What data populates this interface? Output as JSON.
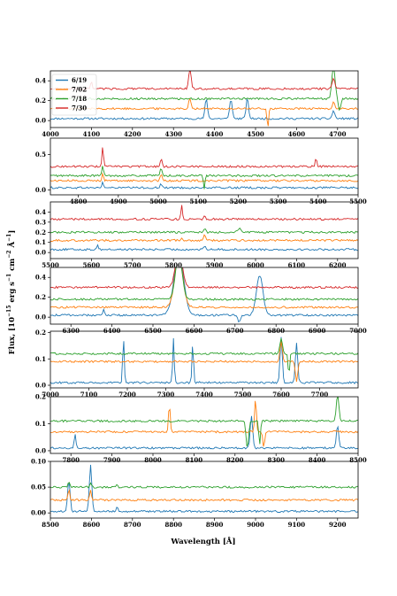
{
  "colors": {
    "6/19": "#1f77b4",
    "7/02": "#ff7f0e",
    "7/18": "#2ca02c",
    "7/30": "#d62728"
  },
  "chart_data": {
    "type": "line",
    "xlabel": "Wavelength [Å]",
    "ylabel": {
      "prefix": "Flux, [10",
      "exp1": "−15",
      "mid1": " erg s",
      "exp2": "−1",
      "mid2": " cm",
      "exp3": "−2",
      "mid3": " Å",
      "exp4": "−1",
      "suffix": "]"
    },
    "legend": {
      "placement": "upper-left",
      "labels": [
        "6/19",
        "7/02",
        "7/18",
        "7/30"
      ]
    },
    "panels": [
      {
        "xlim": [
          4000,
          4750
        ],
        "ylim": [
          -0.07,
          0.5
        ],
        "xticks": [
          "4000",
          "4100",
          "4200",
          "4300",
          "4400",
          "4500",
          "4600",
          "4700"
        ],
        "yticks": [
          "0.0",
          "0.2",
          "0.4"
        ],
        "baselines": [
          0.02,
          0.12,
          0.22,
          0.32
        ],
        "features": [
          {
            "s": 0,
            "x": 4380,
            "w": 3,
            "h": 0.2
          },
          {
            "s": 0,
            "x": 4440,
            "w": 3,
            "h": 0.2
          },
          {
            "s": 0,
            "x": 4480,
            "w": 3,
            "h": 0.2
          },
          {
            "s": 0,
            "x": 4690,
            "w": 3,
            "h": 0.08
          },
          {
            "s": 1,
            "x": 4340,
            "w": 3,
            "h": 0.1
          },
          {
            "s": 1,
            "x": 4530,
            "w": 2,
            "h": -0.18
          },
          {
            "s": 1,
            "x": 4690,
            "w": 3,
            "h": 0.06
          },
          {
            "s": 2,
            "x": 4690,
            "w": 4,
            "h": 0.32
          },
          {
            "s": 2,
            "x": 4705,
            "w": 3,
            "h": -0.12
          },
          {
            "s": 3,
            "x": 4340,
            "w": 3,
            "h": 0.2
          },
          {
            "s": 3,
            "x": 4100,
            "w": 2,
            "h": 0.08
          },
          {
            "s": 3,
            "x": 4690,
            "w": 3,
            "h": 0.1
          }
        ]
      },
      {
        "xlim": [
          4730,
          5500
        ],
        "ylim": [
          -0.07,
          0.73
        ],
        "xticks": [
          "4800",
          "4900",
          "5000",
          "5100",
          "5200",
          "5300",
          "5400",
          "5500"
        ],
        "yticks": [
          "0.0",
          "0.5"
        ],
        "baselines": [
          0.03,
          0.13,
          0.2,
          0.33
        ],
        "features": [
          {
            "s": 0,
            "x": 4861,
            "w": 2,
            "h": 0.08
          },
          {
            "s": 0,
            "x": 5007,
            "w": 2,
            "h": 0.06
          },
          {
            "s": 1,
            "x": 4861,
            "w": 2,
            "h": 0.12
          },
          {
            "s": 1,
            "x": 5007,
            "w": 2,
            "h": 0.1
          },
          {
            "s": 2,
            "x": 4861,
            "w": 2,
            "h": 0.15
          },
          {
            "s": 2,
            "x": 5007,
            "w": 2,
            "h": 0.12
          },
          {
            "s": 2,
            "x": 5115,
            "w": 2,
            "h": -0.18
          },
          {
            "s": 3,
            "x": 4861,
            "w": 2,
            "h": 0.28
          },
          {
            "s": 3,
            "x": 5007,
            "w": 2,
            "h": 0.12
          },
          {
            "s": 3,
            "x": 5395,
            "w": 2,
            "h": 0.12
          }
        ]
      },
      {
        "xlim": [
          5500,
          6250
        ],
        "ylim": [
          -0.06,
          0.5
        ],
        "xticks": [
          "5500",
          "5600",
          "5700",
          "5800",
          "5900",
          "6000",
          "6100",
          "6200"
        ],
        "yticks": [
          "0.0",
          "0.1",
          "0.2",
          "0.3",
          "0.4"
        ],
        "baselines": [
          0.03,
          0.12,
          0.2,
          0.33
        ],
        "features": [
          {
            "s": 0,
            "x": 5615,
            "w": 2,
            "h": 0.05
          },
          {
            "s": 0,
            "x": 5876,
            "w": 2,
            "h": 0.04
          },
          {
            "s": 1,
            "x": 5876,
            "w": 2,
            "h": 0.07
          },
          {
            "s": 1,
            "x": 5820,
            "w": 2,
            "h": 0.03
          },
          {
            "s": 2,
            "x": 5876,
            "w": 2,
            "h": 0.04
          },
          {
            "s": 2,
            "x": 5960,
            "w": 4,
            "h": 0.04
          },
          {
            "s": 3,
            "x": 5820,
            "w": 2,
            "h": 0.13
          },
          {
            "s": 3,
            "x": 5876,
            "w": 2,
            "h": 0.04
          }
        ]
      },
      {
        "xlim": [
          6250,
          7000
        ],
        "ylim": [
          -0.07,
          0.5
        ],
        "xticks": [
          "6300",
          "6400",
          "6500",
          "6600",
          "6700",
          "6800",
          "6900",
          "7000"
        ],
        "yticks": [
          "0.0",
          "0.2",
          "0.4"
        ],
        "baselines": [
          0.02,
          0.1,
          0.18,
          0.3
        ],
        "features": [
          {
            "s": 0,
            "x": 6563,
            "w": 12,
            "h": 0.6
          },
          {
            "s": 0,
            "x": 6760,
            "w": 8,
            "h": 0.4
          },
          {
            "s": 0,
            "x": 6380,
            "w": 2,
            "h": 0.06
          },
          {
            "s": 0,
            "x": 6710,
            "w": 3,
            "h": -0.07
          },
          {
            "s": 1,
            "x": 6563,
            "w": 10,
            "h": 0.5
          },
          {
            "s": 2,
            "x": 6563,
            "w": 8,
            "h": 0.45
          },
          {
            "s": 3,
            "x": 6563,
            "w": 8,
            "h": 0.4
          }
        ]
      },
      {
        "xlim": [
          7000,
          7800
        ],
        "ylim": [
          -0.01,
          0.205
        ],
        "xticks": [
          "7000",
          "7100",
          "7200",
          "7300",
          "7400",
          "7500",
          "7600",
          "7700"
        ],
        "yticks": [
          "0.0",
          "0.1",
          "0.2"
        ],
        "baselines": [
          0.01,
          0.09,
          0.12
        ],
        "features": [
          {
            "s": 0,
            "x": 7190,
            "w": 2,
            "h": 0.17
          },
          {
            "s": 0,
            "x": 7320,
            "w": 2,
            "h": 0.17
          },
          {
            "s": 0,
            "x": 7370,
            "w": 2,
            "h": 0.15
          },
          {
            "s": 0,
            "x": 7600,
            "w": 3,
            "h": 0.17
          },
          {
            "s": 0,
            "x": 7640,
            "w": 3,
            "h": 0.15
          },
          {
            "s": 1,
            "x": 7600,
            "w": 3,
            "h": 0.08
          },
          {
            "s": 1,
            "x": 7640,
            "w": 3,
            "h": -0.08
          },
          {
            "s": 2,
            "x": 7600,
            "w": 3,
            "h": 0.06
          },
          {
            "s": 2,
            "x": 7620,
            "w": 2,
            "h": -0.08
          }
        ]
      },
      {
        "xlim": [
          7750,
          8500
        ],
        "ylim": [
          -0.01,
          0.2
        ],
        "xticks": [
          "7800",
          "7900",
          "8000",
          "8100",
          "8200",
          "8300",
          "8400",
          "8500"
        ],
        "yticks": [
          "0.0",
          "0.1",
          "0.2"
        ],
        "baselines": [
          0.01,
          0.07,
          0.11
        ],
        "features": [
          {
            "s": 0,
            "x": 7810,
            "w": 2,
            "h": 0.05
          },
          {
            "s": 0,
            "x": 8240,
            "w": 3,
            "h": 0.12
          },
          {
            "s": 0,
            "x": 8450,
            "w": 3,
            "h": 0.08
          },
          {
            "s": 1,
            "x": 8040,
            "w": 2,
            "h": 0.1
          },
          {
            "s": 1,
            "x": 8250,
            "w": 2,
            "h": 0.13
          },
          {
            "s": 1,
            "x": 8270,
            "w": 2,
            "h": -0.06
          },
          {
            "s": 2,
            "x": 8230,
            "w": 3,
            "h": -0.1
          },
          {
            "s": 2,
            "x": 8260,
            "w": 2,
            "h": -0.09
          },
          {
            "s": 2,
            "x": 8450,
            "w": 3,
            "h": 0.1
          }
        ]
      },
      {
        "xlim": [
          8500,
          9250
        ],
        "ylim": [
          -0.01,
          0.1
        ],
        "xticks": [
          "8500",
          "8600",
          "8700",
          "8800",
          "8900",
          "9000",
          "9100",
          "9200"
        ],
        "yticks": [
          "0.00",
          "0.05",
          "0.10"
        ],
        "baselines": [
          0.003,
          0.025,
          0.05
        ],
        "features": [
          {
            "s": 0,
            "x": 8545,
            "w": 3,
            "h": 0.06
          },
          {
            "s": 0,
            "x": 8598,
            "w": 3,
            "h": 0.09
          },
          {
            "s": 0,
            "x": 8662,
            "w": 2,
            "h": 0.01
          },
          {
            "s": 1,
            "x": 8545,
            "w": 2,
            "h": 0.02
          },
          {
            "s": 1,
            "x": 8598,
            "w": 2,
            "h": 0.02
          },
          {
            "s": 2,
            "x": 8545,
            "w": 2,
            "h": 0.01
          },
          {
            "s": 2,
            "x": 8598,
            "w": 2,
            "h": 0.01
          },
          {
            "s": 2,
            "x": 8662,
            "w": 2,
            "h": 0.005
          }
        ]
      }
    ]
  }
}
